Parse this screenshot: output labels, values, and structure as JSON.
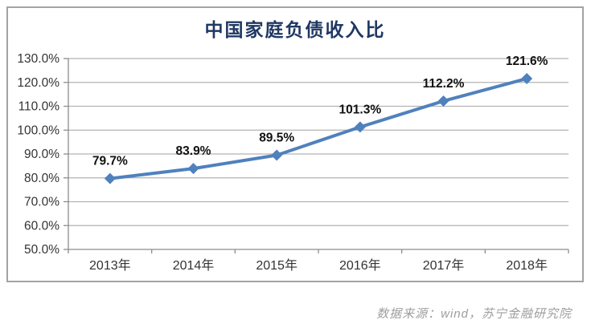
{
  "chart_data": {
    "type": "line",
    "title": "中国家庭负债收入比",
    "categories": [
      "2013年",
      "2014年",
      "2015年",
      "2016年",
      "2017年",
      "2018年"
    ],
    "values": [
      79.7,
      83.9,
      89.5,
      101.3,
      112.2,
      121.6
    ],
    "data_labels": [
      "79.7%",
      "83.9%",
      "89.5%",
      "101.3%",
      "112.2%",
      "121.6%"
    ],
    "ylim": [
      50,
      130
    ],
    "ytick_step": 10,
    "ytick_labels": [
      "50.0%",
      "60.0%",
      "70.0%",
      "80.0%",
      "90.0%",
      "100.0%",
      "110.0%",
      "120.0%",
      "130.0%"
    ],
    "grid": true,
    "legend": "none",
    "marker": "diamond",
    "series_color": "#4f81bd",
    "source_note": "数据来源：wind，苏宁金融研究院"
  },
  "colors": {
    "title": "#1f3864",
    "gridline": "#b3b3b3",
    "axis": "#8c8c8c",
    "tick_text": "#333333",
    "data_label_text": "#111111",
    "frame_border": "#a3a3a3",
    "source_text": "#9e9e9e"
  }
}
